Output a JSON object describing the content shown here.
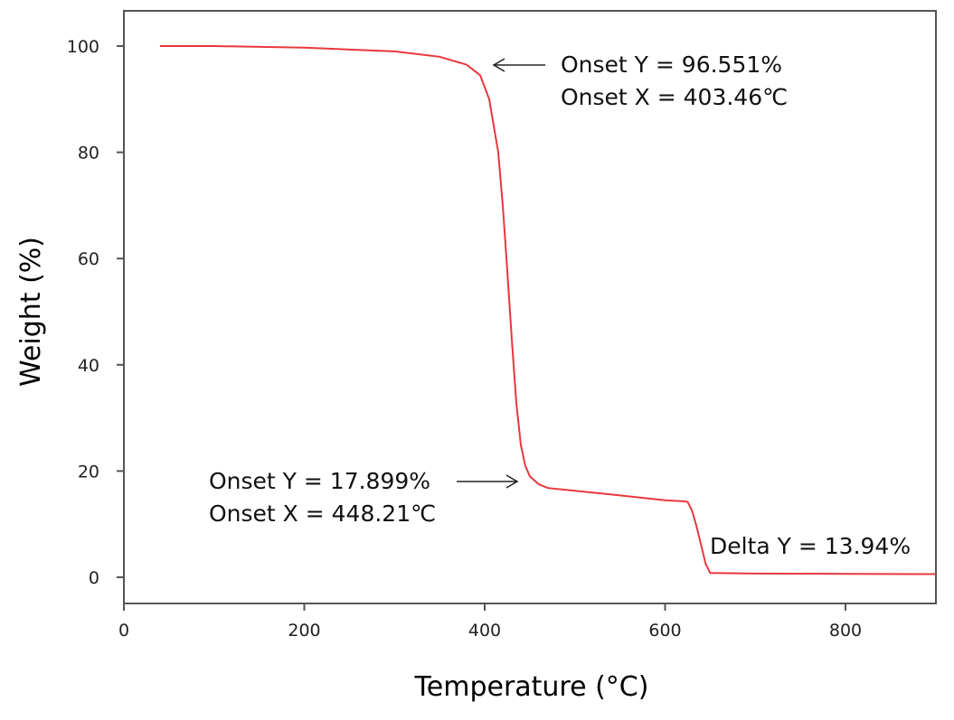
{
  "chart_data": {
    "type": "line",
    "xlabel": "Temperature (°C)",
    "ylabel": "Weight (%)",
    "xlim": [
      0,
      900
    ],
    "ylim": [
      -5,
      110
    ],
    "x_ticks": [
      "0",
      "200",
      "400",
      "600",
      "800"
    ],
    "y_ticks": [
      "0",
      "20",
      "40",
      "60",
      "80",
      "100"
    ],
    "grid": false,
    "line_color": "#e8383d",
    "series": [
      {
        "x": [
          40,
          100,
          200,
          300,
          350,
          380,
          395,
          405,
          415,
          420,
          425,
          430,
          435,
          440,
          445,
          450,
          460,
          470,
          500,
          550,
          600,
          620,
          625,
          630,
          635,
          640,
          645,
          650,
          700,
          800,
          900
        ],
        "y": [
          100,
          100,
          99.7,
          99.0,
          98.0,
          96.5,
          94.5,
          90,
          80,
          70,
          58,
          45,
          33,
          25,
          21,
          19,
          17.5,
          16.8,
          16.3,
          15.4,
          14.5,
          14.3,
          14.2,
          12.5,
          9.5,
          6,
          2.5,
          0.8,
          0.7,
          0.65,
          0.6
        ]
      }
    ],
    "annotations": [
      {
        "lines": [
          "Onset Y = 96.551%",
          "Onset X = 403.46℃"
        ],
        "arrow": "left"
      },
      {
        "lines": [
          "Onset Y = 17.899%",
          "Onset X = 448.21℃"
        ],
        "arrow": "right"
      },
      {
        "lines": [
          "Delta Y = 13.94%"
        ],
        "arrow": "none"
      }
    ]
  }
}
